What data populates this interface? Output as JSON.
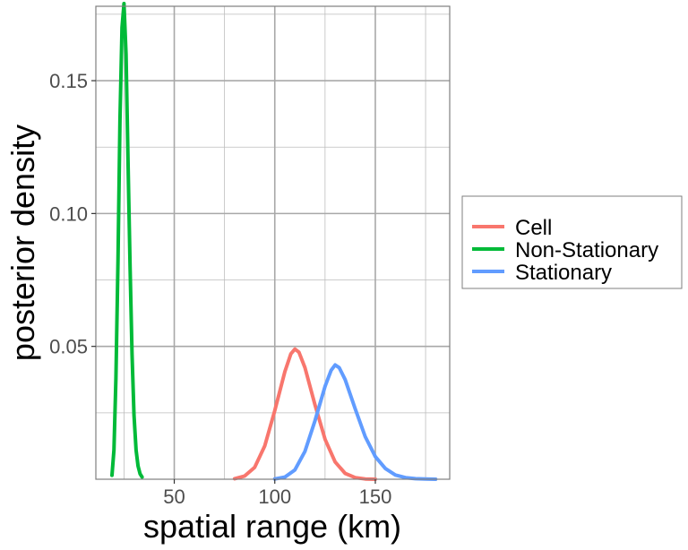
{
  "chart_data": {
    "type": "line",
    "title": "",
    "xlabel": "spatial range (km)",
    "ylabel": "posterior density",
    "xlim": [
      11,
      187
    ],
    "ylim": [
      0,
      0.178
    ],
    "x_ticks": [
      50,
      100,
      150
    ],
    "x_tick_labels": [
      "50",
      "100",
      "150"
    ],
    "y_ticks": [
      0.05,
      0.1,
      0.15
    ],
    "y_tick_labels": [
      "0.05",
      "0.10",
      "0.15"
    ],
    "grid": true,
    "legend_position": "right",
    "series": [
      {
        "name": "Cell",
        "color": "#F8766D",
        "x": [
          80,
          85,
          90,
          95,
          100,
          105,
          108,
          110,
          112,
          115,
          120,
          125,
          130,
          135,
          140,
          145,
          150
        ],
        "y": [
          0.0002,
          0.0012,
          0.0045,
          0.0125,
          0.0258,
          0.0405,
          0.0472,
          0.049,
          0.0478,
          0.042,
          0.028,
          0.015,
          0.0065,
          0.0022,
          0.0006,
          0.0001,
          0.0
        ]
      },
      {
        "name": "Non-Stationary",
        "color": "#00BA38",
        "x": [
          19,
          20,
          21,
          22,
          23,
          24,
          25,
          26,
          27,
          28,
          29,
          30,
          31,
          32,
          33,
          34
        ],
        "y": [
          0.0015,
          0.011,
          0.038,
          0.082,
          0.135,
          0.17,
          0.179,
          0.16,
          0.12,
          0.08,
          0.047,
          0.024,
          0.011,
          0.005,
          0.002,
          0.0008
        ]
      },
      {
        "name": "Stationary",
        "color": "#619CFF",
        "x": [
          100,
          105,
          110,
          115,
          120,
          125,
          128,
          130,
          132,
          135,
          140,
          145,
          150,
          155,
          160,
          165,
          170,
          175,
          180
        ],
        "y": [
          0.0001,
          0.0008,
          0.0035,
          0.0105,
          0.022,
          0.035,
          0.041,
          0.043,
          0.042,
          0.0375,
          0.0265,
          0.016,
          0.0085,
          0.004,
          0.0016,
          0.0006,
          0.0002,
          0.0001,
          0.0
        ]
      }
    ]
  }
}
